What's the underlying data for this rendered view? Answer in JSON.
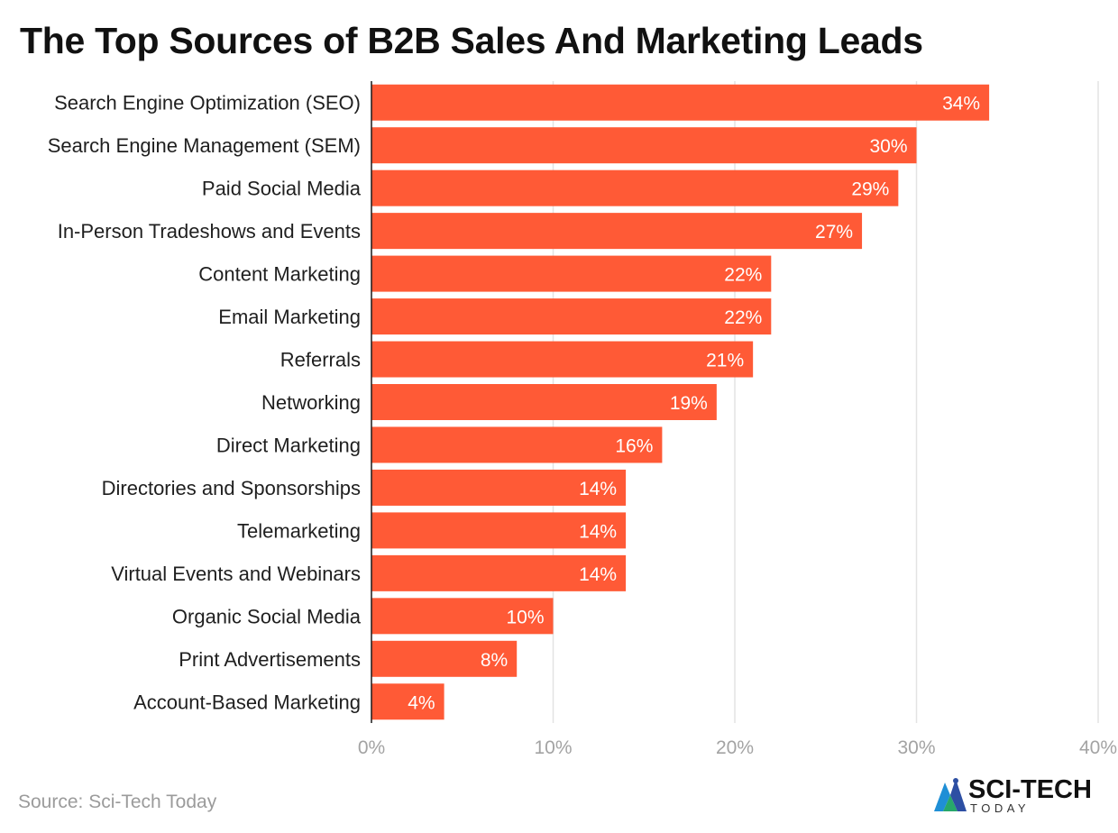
{
  "chart_data": {
    "type": "bar",
    "orientation": "horizontal",
    "title": "The Top Sources of B2B Sales And Marketing Leads",
    "categories": [
      "Search Engine Optimization (SEO)",
      "Search Engine Management (SEM)",
      "Paid Social Media",
      "In-Person Tradeshows and Events",
      "Content Marketing",
      "Email Marketing",
      "Referrals",
      "Networking",
      "Direct Marketing",
      "Directories and Sponsorships",
      "Telemarketing",
      "Virtual Events and Webinars",
      "Organic Social Media",
      "Print Advertisements",
      "Account-Based Marketing"
    ],
    "values": [
      34,
      30,
      29,
      27,
      22,
      22,
      21,
      19,
      16,
      14,
      14,
      14,
      10,
      8,
      4
    ],
    "value_labels": [
      "34%",
      "30%",
      "29%",
      "27%",
      "22%",
      "22%",
      "21%",
      "19%",
      "16%",
      "14%",
      "14%",
      "14%",
      "10%",
      "8%",
      "4%"
    ],
    "xlim": [
      0,
      40
    ],
    "xticks": [
      0,
      10,
      20,
      30,
      40
    ],
    "xtick_labels": [
      "0%",
      "10%",
      "20%",
      "30%",
      "40%"
    ],
    "grid": "vertical",
    "legend": "none",
    "bar_color": "#ff5a36"
  },
  "source": "Source: Sci-Tech Today",
  "logo": {
    "top": "SCI-TECH",
    "bottom": "TODAY",
    "icon": "sci-tech-logo-icon"
  }
}
